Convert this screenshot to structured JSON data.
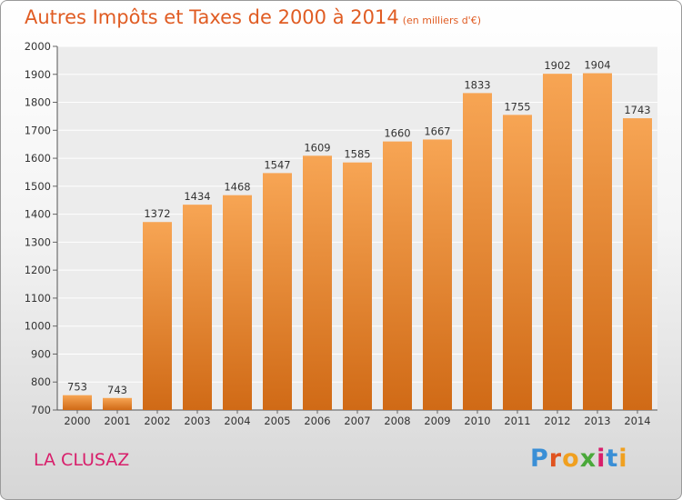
{
  "header": {
    "title": "Autres Impôts et Taxes de 2000 à 2014",
    "unit": "(en milliers d'€)"
  },
  "footer": {
    "place": "LA CLUSAZ",
    "logo": "Proxiti"
  },
  "colors": {
    "title": "#e05c23",
    "place": "#d81f6b",
    "bar_top": "#f7a554",
    "bar_bottom": "#d06a16",
    "logo_letters": [
      "#3a8fd6",
      "#e0531f",
      "#f0a020",
      "#4aa83a",
      "#d81f6b",
      "#3a8fd6",
      "#f0a020"
    ]
  },
  "chart_data": {
    "type": "bar",
    "title": "Autres Impôts et Taxes de 2000 à 2014",
    "xlabel": "",
    "ylabel": "",
    "categories": [
      "2000",
      "2001",
      "2002",
      "2003",
      "2004",
      "2005",
      "2006",
      "2007",
      "2008",
      "2009",
      "2010",
      "2011",
      "2012",
      "2013",
      "2014"
    ],
    "values": [
      753,
      743,
      1372,
      1434,
      1468,
      1547,
      1609,
      1585,
      1660,
      1667,
      1833,
      1755,
      1902,
      1904,
      1743
    ],
    "ylim": [
      700,
      2000
    ],
    "yticks": [
      700,
      800,
      900,
      1000,
      1100,
      1200,
      1300,
      1400,
      1500,
      1600,
      1700,
      1800,
      1900,
      2000
    ],
    "grid": true,
    "legend": "none"
  }
}
